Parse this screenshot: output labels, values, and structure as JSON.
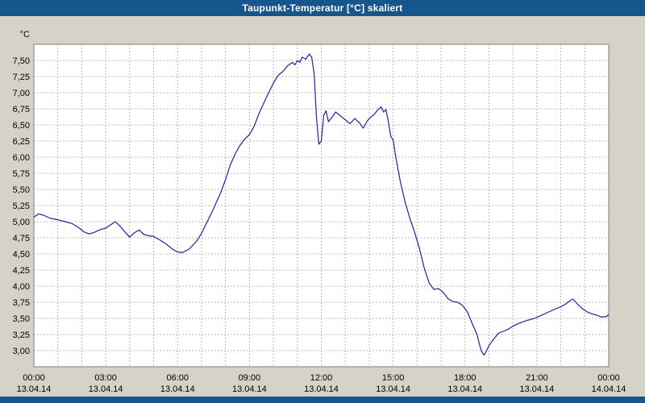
{
  "window": {
    "title": "Taupunkt-Temperatur [°C] skaliert"
  },
  "colors": {
    "title_bar": "#16568c",
    "bottom_bar": "#16568c",
    "background": "#d6d2ca",
    "plot_bg": "#ffffff",
    "grid": "#b8b8b8",
    "plot_border": "#7f7f7f",
    "line": "#2121a3",
    "text": "#000000"
  },
  "chart_data": {
    "type": "line",
    "title": "Taupunkt-Temperatur [°C] skaliert",
    "unit_label": "°C",
    "x_range_hours": [
      0,
      24
    ],
    "ylim": [
      2.75,
      7.75
    ],
    "grid": {
      "x_step_hours": 1,
      "y_step": 0.25,
      "style": "dashed"
    },
    "legend": "none",
    "y_ticks": [
      {
        "v": 7.5,
        "label": "7,50"
      },
      {
        "v": 7.25,
        "label": "7,25"
      },
      {
        "v": 7.0,
        "label": "7,00"
      },
      {
        "v": 6.75,
        "label": "6,75"
      },
      {
        "v": 6.5,
        "label": "6,50"
      },
      {
        "v": 6.25,
        "label": "6,25"
      },
      {
        "v": 6.0,
        "label": "6,00"
      },
      {
        "v": 5.75,
        "label": "5,75"
      },
      {
        "v": 5.5,
        "label": "5,50"
      },
      {
        "v": 5.25,
        "label": "5,25"
      },
      {
        "v": 5.0,
        "label": "5,00"
      },
      {
        "v": 4.75,
        "label": "4,75"
      },
      {
        "v": 4.5,
        "label": "4,50"
      },
      {
        "v": 4.25,
        "label": "4,25"
      },
      {
        "v": 4.0,
        "label": "4,00"
      },
      {
        "v": 3.75,
        "label": "3,75"
      },
      {
        "v": 3.5,
        "label": "3,50"
      },
      {
        "v": 3.25,
        "label": "3,25"
      },
      {
        "v": 3.0,
        "label": "3,00"
      }
    ],
    "x_ticks": [
      {
        "h": 0,
        "time": "00:00",
        "date": "13.04.14"
      },
      {
        "h": 3,
        "time": "03:00",
        "date": "13.04.14"
      },
      {
        "h": 6,
        "time": "06:00",
        "date": "13.04.14"
      },
      {
        "h": 9,
        "time": "09:00",
        "date": "13.04.14"
      },
      {
        "h": 12,
        "time": "12:00",
        "date": "13.04.14"
      },
      {
        "h": 15,
        "time": "15:00",
        "date": "13.04.14"
      },
      {
        "h": 18,
        "time": "18:00",
        "date": "13.04.14"
      },
      {
        "h": 21,
        "time": "21:00",
        "date": "13.04.14"
      },
      {
        "h": 24,
        "time": "00:00",
        "date": "14.04.14"
      }
    ],
    "series": [
      {
        "name": "Taupunkt-Temperatur",
        "points": [
          [
            0.0,
            5.07
          ],
          [
            0.2,
            5.12
          ],
          [
            0.4,
            5.1
          ],
          [
            0.7,
            5.05
          ],
          [
            1.0,
            5.03
          ],
          [
            1.3,
            5.0
          ],
          [
            1.6,
            4.97
          ],
          [
            1.9,
            4.9
          ],
          [
            2.1,
            4.84
          ],
          [
            2.3,
            4.81
          ],
          [
            2.5,
            4.83
          ],
          [
            2.8,
            4.88
          ],
          [
            3.0,
            4.9
          ],
          [
            3.2,
            4.95
          ],
          [
            3.4,
            5.0
          ],
          [
            3.6,
            4.93
          ],
          [
            3.8,
            4.84
          ],
          [
            4.0,
            4.76
          ],
          [
            4.2,
            4.83
          ],
          [
            4.4,
            4.87
          ],
          [
            4.6,
            4.8
          ],
          [
            4.8,
            4.78
          ],
          [
            5.0,
            4.77
          ],
          [
            5.2,
            4.73
          ],
          [
            5.5,
            4.66
          ],
          [
            5.8,
            4.57
          ],
          [
            6.0,
            4.53
          ],
          [
            6.2,
            4.52
          ],
          [
            6.5,
            4.58
          ],
          [
            6.8,
            4.7
          ],
          [
            7.0,
            4.82
          ],
          [
            7.2,
            4.97
          ],
          [
            7.5,
            5.2
          ],
          [
            7.8,
            5.45
          ],
          [
            8.0,
            5.65
          ],
          [
            8.2,
            5.88
          ],
          [
            8.4,
            6.05
          ],
          [
            8.6,
            6.18
          ],
          [
            8.8,
            6.28
          ],
          [
            9.0,
            6.35
          ],
          [
            9.2,
            6.48
          ],
          [
            9.4,
            6.68
          ],
          [
            9.7,
            6.92
          ],
          [
            10.0,
            7.15
          ],
          [
            10.2,
            7.27
          ],
          [
            10.4,
            7.33
          ],
          [
            10.6,
            7.42
          ],
          [
            10.8,
            7.47
          ],
          [
            10.9,
            7.43
          ],
          [
            11.0,
            7.5
          ],
          [
            11.1,
            7.47
          ],
          [
            11.2,
            7.55
          ],
          [
            11.35,
            7.52
          ],
          [
            11.5,
            7.6
          ],
          [
            11.6,
            7.55
          ],
          [
            11.7,
            7.3
          ],
          [
            11.8,
            6.6
          ],
          [
            11.9,
            6.2
          ],
          [
            12.0,
            6.25
          ],
          [
            12.1,
            6.65
          ],
          [
            12.2,
            6.72
          ],
          [
            12.3,
            6.55
          ],
          [
            12.45,
            6.62
          ],
          [
            12.6,
            6.7
          ],
          [
            12.8,
            6.64
          ],
          [
            13.0,
            6.58
          ],
          [
            13.2,
            6.52
          ],
          [
            13.4,
            6.6
          ],
          [
            13.6,
            6.53
          ],
          [
            13.75,
            6.45
          ],
          [
            13.9,
            6.55
          ],
          [
            14.0,
            6.6
          ],
          [
            14.2,
            6.66
          ],
          [
            14.35,
            6.73
          ],
          [
            14.5,
            6.78
          ],
          [
            14.6,
            6.7
          ],
          [
            14.7,
            6.74
          ],
          [
            14.8,
            6.55
          ],
          [
            14.9,
            6.32
          ],
          [
            15.0,
            6.27
          ],
          [
            15.1,
            6.02
          ],
          [
            15.3,
            5.62
          ],
          [
            15.5,
            5.3
          ],
          [
            15.7,
            5.05
          ],
          [
            15.9,
            4.83
          ],
          [
            16.1,
            4.58
          ],
          [
            16.3,
            4.28
          ],
          [
            16.5,
            4.05
          ],
          [
            16.7,
            3.95
          ],
          [
            16.9,
            3.96
          ],
          [
            17.1,
            3.9
          ],
          [
            17.3,
            3.8
          ],
          [
            17.5,
            3.76
          ],
          [
            17.7,
            3.75
          ],
          [
            17.9,
            3.7
          ],
          [
            18.1,
            3.6
          ],
          [
            18.3,
            3.42
          ],
          [
            18.5,
            3.25
          ],
          [
            18.6,
            3.1
          ],
          [
            18.7,
            2.98
          ],
          [
            18.8,
            2.93
          ],
          [
            18.9,
            3.0
          ],
          [
            19.0,
            3.08
          ],
          [
            19.2,
            3.18
          ],
          [
            19.4,
            3.27
          ],
          [
            19.6,
            3.3
          ],
          [
            19.8,
            3.33
          ],
          [
            20.0,
            3.38
          ],
          [
            20.3,
            3.43
          ],
          [
            20.6,
            3.47
          ],
          [
            20.9,
            3.5
          ],
          [
            21.2,
            3.55
          ],
          [
            21.5,
            3.6
          ],
          [
            21.8,
            3.65
          ],
          [
            22.0,
            3.68
          ],
          [
            22.2,
            3.72
          ],
          [
            22.4,
            3.78
          ],
          [
            22.5,
            3.8
          ],
          [
            22.7,
            3.72
          ],
          [
            22.9,
            3.65
          ],
          [
            23.1,
            3.6
          ],
          [
            23.3,
            3.57
          ],
          [
            23.5,
            3.55
          ],
          [
            23.7,
            3.52
          ],
          [
            23.9,
            3.53
          ],
          [
            24.0,
            3.56
          ]
        ]
      }
    ]
  }
}
